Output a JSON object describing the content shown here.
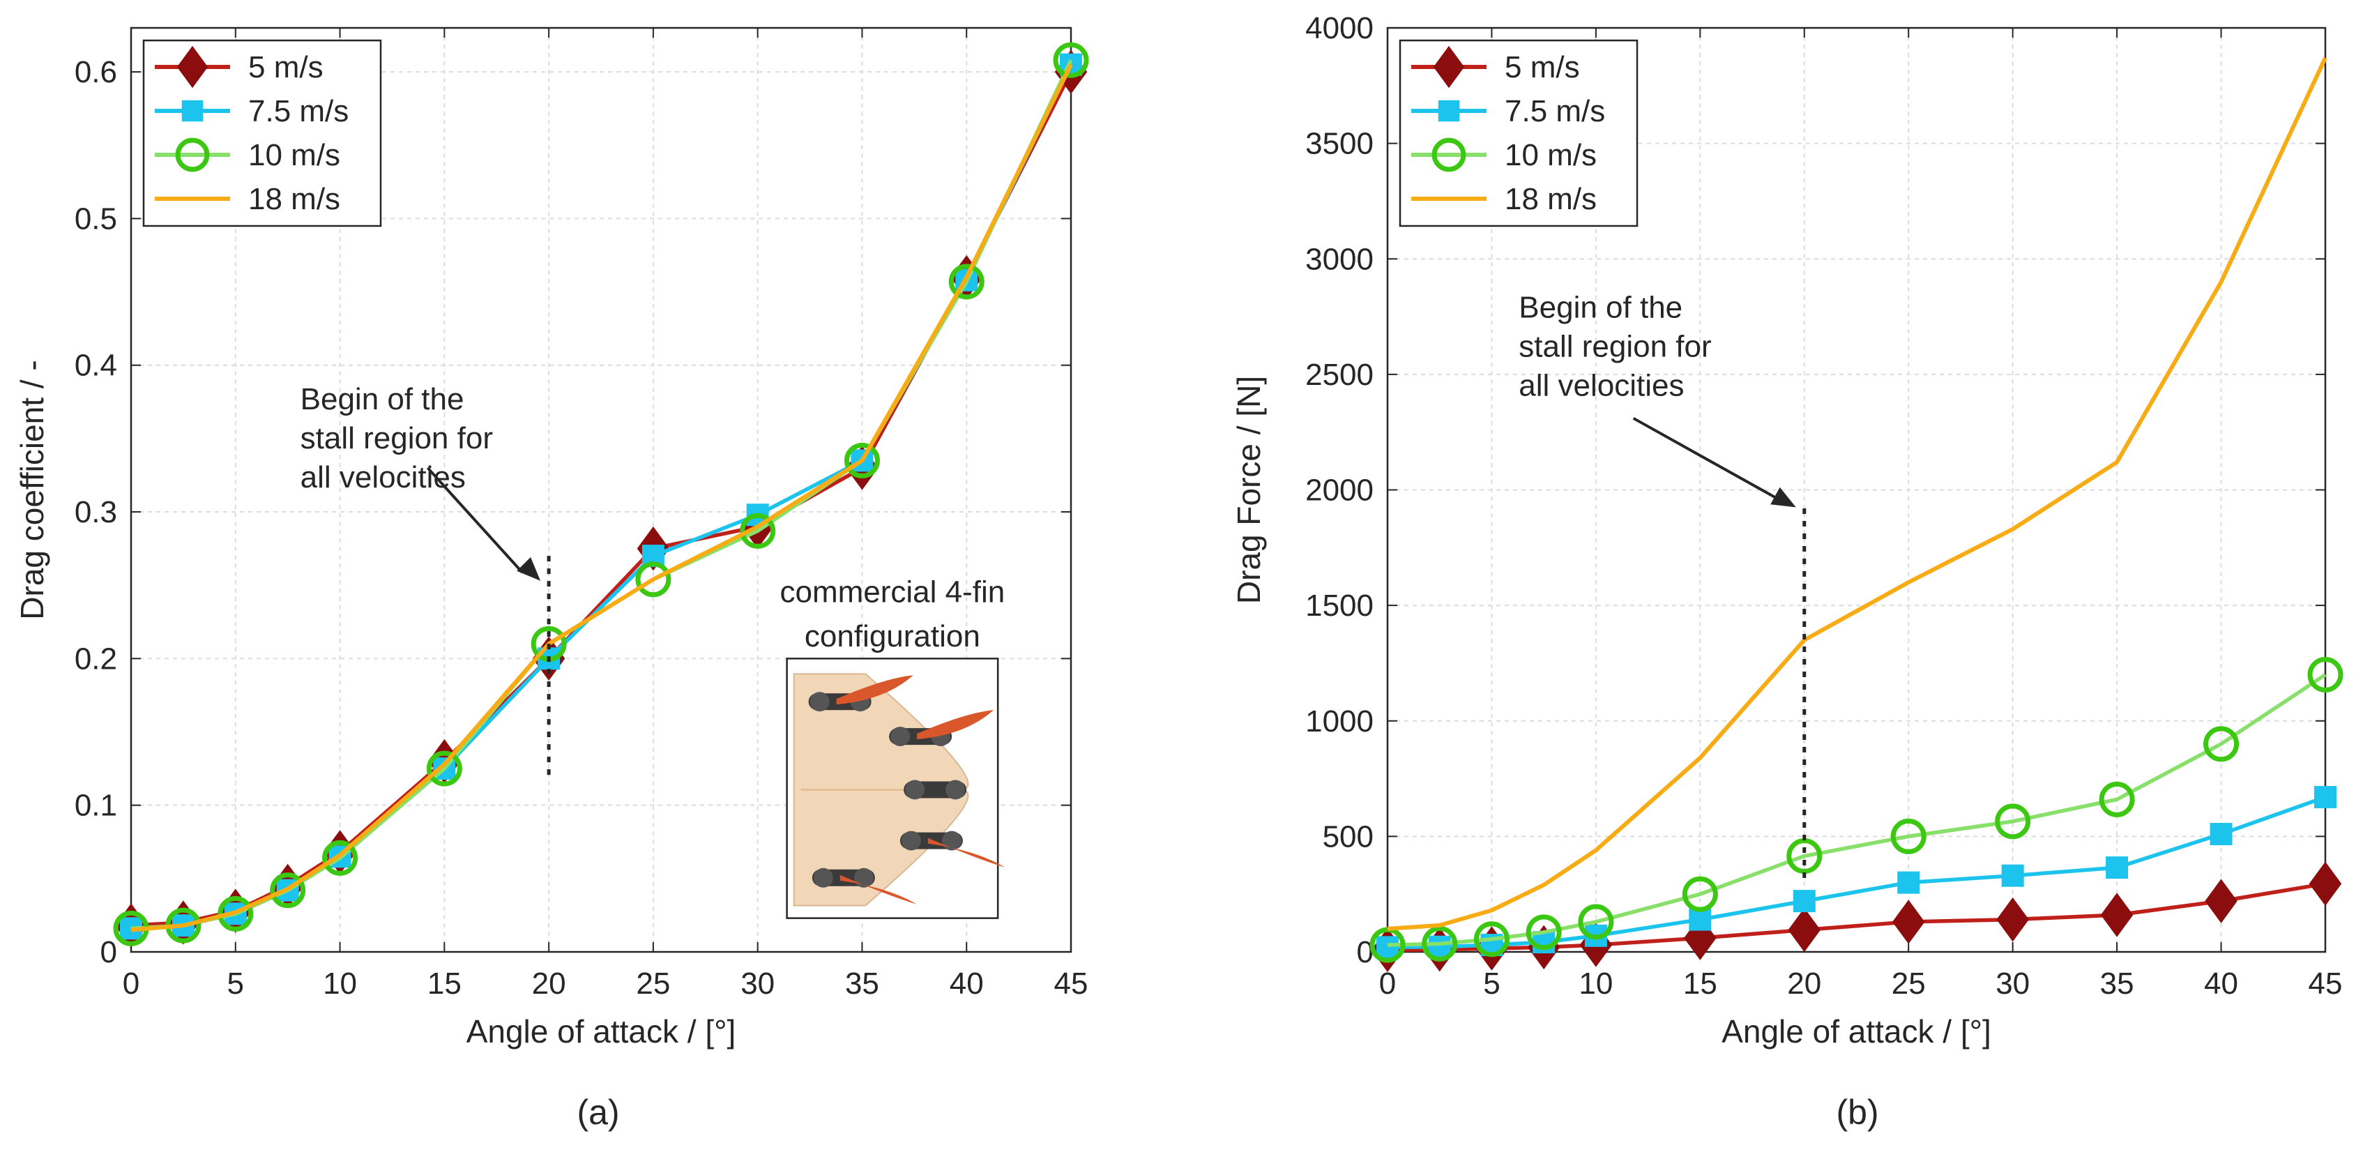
{
  "colors": {
    "5 m/s": "#c0201a",
    "5 m/s marker": "#8b0d0d",
    "7.5 m/s": "#1cc3ec",
    "10 m/s": "#88e06a",
    "10 m/s marker": "#3cc812",
    "18 m/s": "#f7ac16"
  },
  "chart_data": [
    {
      "type": "line",
      "panel_label": "(a)",
      "title": "",
      "xlabel": "Angle of attack / [°]",
      "ylabel": "Drag coefficient / -",
      "xlim": [
        0,
        45
      ],
      "ylim": [
        0,
        0.63
      ],
      "xticks": [
        0,
        5,
        10,
        15,
        20,
        25,
        30,
        35,
        40,
        45
      ],
      "yticks": [
        0,
        0.1,
        0.2,
        0.3,
        0.4,
        0.5,
        0.6
      ],
      "ytick_labels": [
        "0",
        "0.1",
        "0.2",
        "0.3",
        "0.4",
        "0.5",
        "0.6"
      ],
      "grid": true,
      "legend_position": "top-left",
      "series": [
        {
          "name": "5 m/s",
          "marker": "diamond",
          "x": [
            0,
            2.5,
            5,
            7.5,
            10,
            15,
            20,
            25,
            30,
            35,
            40,
            45
          ],
          "values": [
            0.018,
            0.02,
            0.028,
            0.045,
            0.068,
            0.13,
            0.2,
            0.275,
            0.29,
            0.33,
            0.46,
            0.6
          ]
        },
        {
          "name": "7.5 m/s",
          "marker": "square",
          "x": [
            0,
            2.5,
            5,
            7.5,
            10,
            15,
            20,
            25,
            30,
            35,
            40,
            45
          ],
          "values": [
            0.016,
            0.018,
            0.026,
            0.042,
            0.065,
            0.125,
            0.2,
            0.27,
            0.298,
            0.335,
            0.458,
            0.605
          ]
        },
        {
          "name": "10 m/s",
          "marker": "circle-open",
          "x": [
            0,
            2.5,
            5,
            7.5,
            10,
            15,
            20,
            25,
            30,
            35,
            40,
            45
          ],
          "values": [
            0.016,
            0.018,
            0.026,
            0.042,
            0.064,
            0.125,
            0.21,
            0.254,
            0.287,
            0.335,
            0.457,
            0.608
          ]
        },
        {
          "name": "18 m/s",
          "marker": "none",
          "x": [
            0,
            2.5,
            5,
            7.5,
            10,
            15,
            20,
            25,
            30,
            35,
            40,
            45
          ],
          "values": [
            0.015,
            0.018,
            0.027,
            0.043,
            0.066,
            0.128,
            0.21,
            0.254,
            0.29,
            0.335,
            0.46,
            0.605
          ]
        }
      ],
      "annotation": {
        "lines": [
          "Begin of the",
          "stall region for",
          "all velocities"
        ],
        "x": 20,
        "y_top": 0.27,
        "y_bottom": 0.12
      },
      "inset": {
        "lines": [
          "commercial 4-fin",
          "configuration"
        ]
      }
    },
    {
      "type": "line",
      "panel_label": "(b)",
      "title": "",
      "xlabel": "Angle of attack / [°]",
      "ylabel": "Drag Force / [N]",
      "xlim": [
        0,
        45
      ],
      "ylim": [
        0,
        4000
      ],
      "xticks": [
        0,
        5,
        10,
        15,
        20,
        25,
        30,
        35,
        40,
        45
      ],
      "yticks": [
        0,
        500,
        1000,
        1500,
        2000,
        2500,
        3000,
        3500,
        4000
      ],
      "ytick_labels": [
        "0",
        "500",
        "1000",
        "1500",
        "2000",
        "2500",
        "3000",
        "3500",
        "4000"
      ],
      "grid": true,
      "legend_position": "top-left",
      "series": [
        {
          "name": "5 m/s",
          "marker": "diamond",
          "x": [
            0,
            2.5,
            5,
            7.5,
            10,
            15,
            20,
            25,
            30,
            35,
            40,
            45
          ],
          "values": [
            8,
            10,
            15,
            20,
            30,
            60,
            95,
            130,
            140,
            160,
            220,
            295
          ]
        },
        {
          "name": "7.5 m/s",
          "marker": "square",
          "x": [
            0,
            2.5,
            5,
            7.5,
            10,
            15,
            20,
            25,
            30,
            35,
            40,
            45
          ],
          "values": [
            20,
            22,
            30,
            42,
            70,
            140,
            220,
            300,
            330,
            365,
            510,
            670
          ]
        },
        {
          "name": "10 m/s",
          "marker": "circle-open",
          "x": [
            0,
            2.5,
            5,
            7.5,
            10,
            15,
            20,
            25,
            30,
            35,
            40,
            45
          ],
          "values": [
            30,
            35,
            55,
            85,
            130,
            250,
            415,
            500,
            565,
            660,
            900,
            1200
          ]
        },
        {
          "name": "18 m/s",
          "marker": "none",
          "x": [
            0,
            2.5,
            5,
            7.5,
            10,
            15,
            20,
            25,
            30,
            35,
            40,
            45
          ],
          "values": [
            100,
            115,
            180,
            290,
            440,
            840,
            1350,
            1600,
            1830,
            2120,
            2900,
            3870
          ]
        }
      ],
      "annotation": {
        "lines": [
          "Begin of the",
          "stall region for",
          "all velocities"
        ],
        "x": 20,
        "y_top": 1920,
        "y_bottom": 300
      }
    }
  ]
}
